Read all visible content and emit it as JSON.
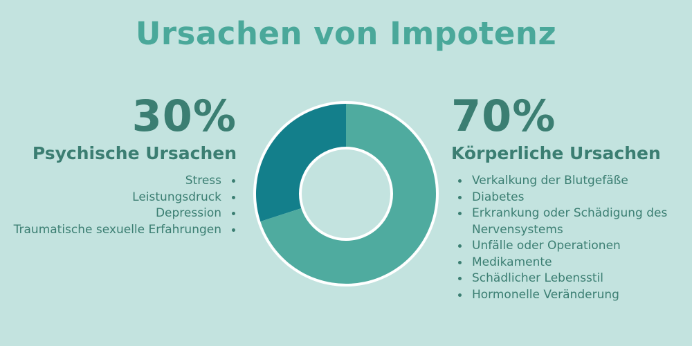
{
  "title": "Ursachen von Impotenz",
  "left": {
    "percent": "30%",
    "heading": "Psychische Ursachen",
    "items": [
      "Stress",
      "Leistungsdruck",
      "Depression",
      "Traumatische sexuelle Erfahrungen"
    ]
  },
  "right": {
    "percent": "70%",
    "heading": "Körperliche Ursachen",
    "items": [
      "Verkalkung der Blutgefäße",
      "Diabetes",
      "Erkrankung oder Schädigung des Nervensystems",
      "Unfälle oder Operationen",
      "Medikamente",
      "Schädlicher Lebensstil",
      "Hormonelle Veränderung"
    ]
  },
  "chart_data": {
    "type": "pie",
    "categories": [
      "Psychische Ursachen",
      "Körperliche Ursachen"
    ],
    "values": [
      30,
      70
    ],
    "colors": [
      "#137f8b",
      "#4fab9f"
    ],
    "title": "Ursachen von Impotenz"
  }
}
